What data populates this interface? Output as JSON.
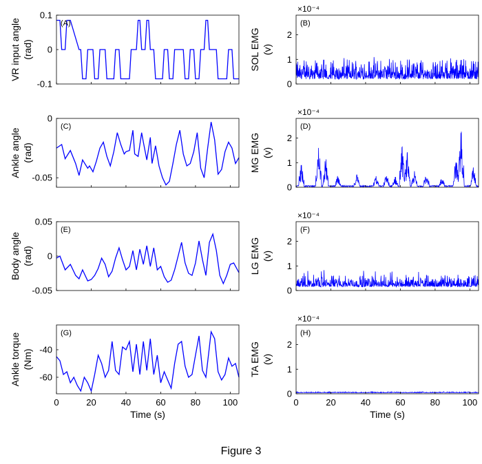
{
  "figure": {
    "caption": "Figure 3"
  },
  "colors": {
    "trace": "#0000ff",
    "axes": "#000000"
  },
  "chart_data": [
    {
      "type": "line",
      "panel_label": "(A)",
      "ylabel": [
        "VR input angle",
        "(rad)"
      ],
      "xlabel": "",
      "xlim": [
        0,
        105
      ],
      "ylim": [
        -0.1,
        0.1
      ],
      "yticks": [
        -0.1,
        0,
        0.1
      ],
      "ytick_labels": [
        "-0.1",
        "0",
        "0.1"
      ],
      "xticks": [
        0,
        20,
        40,
        60,
        80,
        100
      ],
      "xtick_labels": [],
      "exponent": "",
      "series": [
        {
          "x": [
            0,
            2,
            3,
            5,
            6,
            8,
            13,
            14,
            15,
            17,
            18,
            21,
            22,
            24,
            25,
            28,
            29,
            33,
            34,
            36,
            37,
            42,
            43,
            46,
            47,
            48,
            49,
            51,
            52,
            53,
            54,
            56,
            57,
            61,
            62,
            64,
            65,
            67,
            68,
            73,
            74,
            76,
            77,
            79,
            80,
            82,
            83,
            85,
            86,
            87,
            88,
            92,
            93,
            98,
            99,
            101,
            102,
            105
          ],
          "y": [
            0.085,
            0.085,
            0,
            0,
            0.085,
            0.085,
            0,
            0,
            -0.085,
            -0.085,
            0,
            0,
            -0.085,
            -0.085,
            0,
            0,
            -0.085,
            -0.085,
            0,
            0,
            -0.085,
            -0.085,
            0,
            0,
            0.085,
            0.085,
            0,
            0,
            0.085,
            0.085,
            0,
            0,
            -0.085,
            -0.085,
            0,
            0,
            -0.085,
            -0.085,
            0,
            0,
            -0.085,
            -0.085,
            0,
            0,
            -0.085,
            -0.085,
            0,
            0,
            0.085,
            0.085,
            0,
            0,
            -0.085,
            -0.085,
            0,
            0,
            -0.085,
            -0.085
          ]
        }
      ]
    },
    {
      "type": "line",
      "panel_label": "(B)",
      "ylabel": [
        "SOL EMG",
        "(v)"
      ],
      "xlabel": "",
      "xlim": [
        0,
        105
      ],
      "ylim": [
        0,
        2.8
      ],
      "yticks": [
        0,
        1,
        2
      ],
      "ytick_labels": [
        "0",
        "1",
        "2"
      ],
      "xticks": [
        0,
        20,
        40,
        60,
        80,
        100
      ],
      "xtick_labels": [],
      "exponent": "×10⁻⁴",
      "series": [
        {
          "signal": "emg",
          "baseline": 0.2,
          "envelope": 0.6,
          "peak": 1.0
        }
      ]
    },
    {
      "type": "line",
      "panel_label": "(C)",
      "ylabel": [
        "Ankle angle",
        "(rad)"
      ],
      "xlabel": "",
      "xlim": [
        0,
        105
      ],
      "ylim": [
        -0.058,
        0
      ],
      "yticks": [
        -0.05,
        0
      ],
      "ytick_labels": [
        "-0.05",
        "0"
      ],
      "xticks": [
        0,
        20,
        40,
        60,
        80,
        100
      ],
      "xtick_labels": [],
      "exponent": "",
      "series": [
        {
          "x": [
            0,
            3,
            5,
            8,
            11,
            13,
            15,
            18,
            19,
            21,
            23,
            25,
            27,
            29,
            31,
            33,
            35,
            37,
            39,
            40,
            42,
            44,
            45,
            47,
            49,
            50,
            52,
            54,
            55,
            57,
            59,
            61,
            63,
            65,
            67,
            69,
            71,
            73,
            75,
            77,
            79,
            81,
            83,
            85,
            87,
            89,
            91,
            93,
            95,
            97,
            99,
            101,
            103,
            105
          ],
          "y": [
            -0.025,
            -0.022,
            -0.034,
            -0.027,
            -0.038,
            -0.048,
            -0.035,
            -0.042,
            -0.04,
            -0.045,
            -0.036,
            -0.025,
            -0.02,
            -0.032,
            -0.04,
            -0.028,
            -0.012,
            -0.022,
            -0.03,
            -0.028,
            -0.027,
            -0.01,
            -0.03,
            -0.032,
            -0.012,
            -0.02,
            -0.035,
            -0.016,
            -0.038,
            -0.023,
            -0.04,
            -0.05,
            -0.056,
            -0.053,
            -0.038,
            -0.022,
            -0.01,
            -0.03,
            -0.04,
            -0.038,
            -0.028,
            -0.012,
            -0.042,
            -0.05,
            -0.025,
            -0.003,
            -0.018,
            -0.047,
            -0.043,
            -0.028,
            -0.02,
            -0.025,
            -0.038,
            -0.033
          ]
        }
      ]
    },
    {
      "type": "line",
      "panel_label": "(D)",
      "ylabel": [
        "MG EMG",
        "(v)"
      ],
      "xlabel": "",
      "xlim": [
        0,
        105
      ],
      "ylim": [
        0,
        2.8
      ],
      "yticks": [
        0,
        1,
        2
      ],
      "ytick_labels": [
        "0",
        "1",
        "2"
      ],
      "xticks": [
        0,
        20,
        40,
        60,
        80,
        100
      ],
      "xtick_labels": [],
      "exponent": "×10⁻⁴",
      "series": [
        {
          "signal": "emg-bursts",
          "baseline": 0.05,
          "bursts": [
            [
              3,
              1.0
            ],
            [
              13,
              1.8
            ],
            [
              17,
              1.3
            ],
            [
              24,
              0.5
            ],
            [
              35,
              0.6
            ],
            [
              46,
              0.5
            ],
            [
              52,
              0.6
            ],
            [
              57,
              0.5
            ],
            [
              61,
              1.8
            ],
            [
              64,
              1.5
            ],
            [
              68,
              0.7
            ],
            [
              75,
              0.7
            ],
            [
              84,
              0.5
            ],
            [
              92,
              1.3
            ],
            [
              95,
              2.6
            ],
            [
              102,
              0.9
            ]
          ]
        }
      ]
    },
    {
      "type": "line",
      "panel_label": "(E)",
      "ylabel": [
        "Body angle",
        "(rad)"
      ],
      "xlabel": "",
      "xlim": [
        0,
        105
      ],
      "ylim": [
        -0.05,
        0.05
      ],
      "yticks": [
        -0.05,
        0,
        0.05
      ],
      "ytick_labels": [
        "-0.05",
        "0",
        "0.05"
      ],
      "xticks": [
        0,
        20,
        40,
        60,
        80,
        100
      ],
      "xtick_labels": [],
      "exponent": "",
      "series": [
        {
          "x": [
            0,
            2,
            5,
            8,
            11,
            13,
            15,
            18,
            20,
            22,
            24,
            26,
            28,
            30,
            32,
            34,
            36,
            38,
            40,
            42,
            44,
            46,
            48,
            50,
            52,
            54,
            56,
            58,
            60,
            62,
            64,
            66,
            68,
            70,
            72,
            74,
            76,
            78,
            80,
            82,
            84,
            86,
            88,
            90,
            92,
            94,
            96,
            98,
            100,
            102,
            105
          ],
          "y": [
            -0.003,
            0.0,
            -0.02,
            -0.012,
            -0.028,
            -0.033,
            -0.02,
            -0.036,
            -0.034,
            -0.028,
            -0.018,
            -0.003,
            -0.012,
            -0.03,
            -0.022,
            -0.003,
            0.012,
            -0.005,
            -0.02,
            -0.015,
            0.008,
            -0.02,
            0.01,
            -0.012,
            0.015,
            -0.015,
            0.012,
            -0.02,
            -0.015,
            -0.03,
            -0.038,
            -0.035,
            -0.02,
            0.0,
            0.02,
            -0.01,
            -0.025,
            -0.028,
            -0.01,
            0.022,
            -0.005,
            -0.028,
            0.02,
            0.032,
            0.008,
            -0.028,
            -0.04,
            -0.028,
            -0.012,
            -0.01,
            -0.024
          ]
        }
      ]
    },
    {
      "type": "line",
      "panel_label": "(F)",
      "ylabel": [
        "LG EMG",
        "(v)"
      ],
      "xlabel": "",
      "xlim": [
        0,
        105
      ],
      "ylim": [
        0,
        2.8
      ],
      "yticks": [
        0,
        1,
        2
      ],
      "ytick_labels": [
        "0",
        "1",
        "2"
      ],
      "xticks": [
        0,
        20,
        40,
        60,
        80,
        100
      ],
      "xtick_labels": [],
      "exponent": "×10⁻⁴",
      "series": [
        {
          "signal": "emg",
          "baseline": 0.15,
          "envelope": 0.35,
          "peak": 0.85
        }
      ]
    },
    {
      "type": "line",
      "panel_label": "(G)",
      "ylabel": [
        "Ankle torque",
        "(Nm)"
      ],
      "xlabel": "Time (s)",
      "xlim": [
        0,
        105
      ],
      "ylim": [
        -72,
        -22
      ],
      "yticks": [
        -60,
        -40
      ],
      "ytick_labels": [
        "-60",
        "-40"
      ],
      "xticks": [
        0,
        20,
        40,
        60,
        80,
        100
      ],
      "xtick_labels": [
        "0",
        "20",
        "40",
        "60",
        "80",
        "100"
      ],
      "exponent": "",
      "series": [
        {
          "x": [
            0,
            2,
            4,
            6,
            8,
            10,
            12,
            14,
            16,
            18,
            20,
            22,
            24,
            26,
            28,
            30,
            32,
            34,
            36,
            38,
            40,
            42,
            44,
            46,
            48,
            50,
            52,
            54,
            56,
            58,
            60,
            62,
            64,
            66,
            68,
            70,
            72,
            74,
            76,
            78,
            80,
            82,
            84,
            86,
            88,
            89,
            91,
            93,
            95,
            97,
            99,
            101,
            103,
            105
          ],
          "y": [
            -45,
            -48,
            -58,
            -56,
            -64,
            -60,
            -66,
            -70,
            -60,
            -64,
            -70,
            -58,
            -44,
            -50,
            -60,
            -55,
            -34,
            -55,
            -58,
            -38,
            -40,
            -34,
            -56,
            -36,
            -58,
            -34,
            -55,
            -32,
            -58,
            -44,
            -64,
            -56,
            -62,
            -68,
            -50,
            -36,
            -34,
            -52,
            -60,
            -58,
            -44,
            -30,
            -55,
            -60,
            -38,
            -27,
            -32,
            -56,
            -62,
            -58,
            -46,
            -52,
            -50,
            -60
          ]
        }
      ]
    },
    {
      "type": "line",
      "panel_label": "(H)",
      "ylabel": [
        "TA EMG",
        "(v)"
      ],
      "xlabel": "Time (s)",
      "xlim": [
        0,
        105
      ],
      "ylim": [
        0,
        2.8
      ],
      "yticks": [
        0,
        1,
        2
      ],
      "ytick_labels": [
        "0",
        "1",
        "2"
      ],
      "xticks": [
        0,
        20,
        40,
        60,
        80,
        100
      ],
      "xtick_labels": [
        "0",
        "20",
        "40",
        "60",
        "80",
        "100"
      ],
      "exponent": "×10⁻⁴",
      "series": [
        {
          "signal": "emg",
          "baseline": 0.04,
          "envelope": 0.03,
          "peak": 0.08
        }
      ]
    }
  ]
}
